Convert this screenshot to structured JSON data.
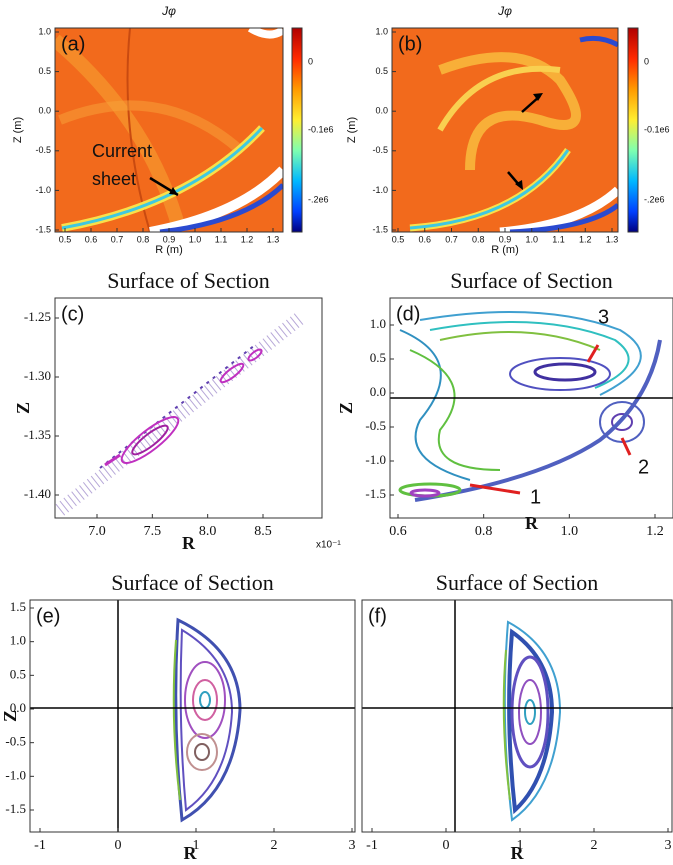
{
  "panels": [
    {
      "label": "(a)",
      "title": "Jφ",
      "x_label": "R (m)",
      "y_label": "Z (m)",
      "x_ticks": [
        "0.5",
        "0.6",
        "0.7",
        "0.8",
        "0.9",
        "1.0",
        "1.1",
        "1.2",
        "1.3"
      ],
      "y_ticks": [
        "1.0",
        "0.5",
        "0.0",
        "-0.5",
        "-1.0",
        "-1.5"
      ],
      "colorbar_ticks": [
        "0",
        "-0.1e6",
        "-.2e6"
      ],
      "annotations": [
        "Current",
        "sheet"
      ]
    },
    {
      "label": "(b)",
      "title": "Jφ",
      "x_label": "R (m)",
      "y_label": "Z (m)",
      "x_ticks": [
        "0.5",
        "0.6",
        "0.7",
        "0.8",
        "0.9",
        "1.0",
        "1.1",
        "1.2",
        "1.3"
      ],
      "y_ticks": [
        "1.0",
        "0.5",
        "0.0",
        "-0.5",
        "-1.0",
        "-1.5"
      ],
      "colorbar_ticks": [
        "0",
        "-0.1e6",
        "-.2e6"
      ]
    },
    {
      "label": "(c)",
      "title": "Surface of Section",
      "x_label": "R",
      "y_label": "Z",
      "x_ticks": [
        "7.0",
        "7.5",
        "8.0",
        "8.5"
      ],
      "y_ticks": [
        "-1.25",
        "-1.30",
        "-1.35",
        "-1.40"
      ],
      "x_multiplier": "x10⁻¹"
    },
    {
      "label": "(d)",
      "title": "Surface of Section",
      "x_label": "R",
      "y_label": "Z",
      "x_ticks": [
        "0.6",
        "0.8",
        "1.0",
        "1.2"
      ],
      "y_ticks": [
        "1.0",
        "0.5",
        "0.0",
        "-0.5",
        "-1.0",
        "-1.5"
      ],
      "annotations": [
        "3",
        "2",
        "1"
      ]
    },
    {
      "label": "(e)",
      "title": "Surface of Section",
      "x_label": "R",
      "y_label": "Z",
      "x_ticks": [
        "-1",
        "0",
        "1",
        "2",
        "3"
      ],
      "y_ticks": [
        "1.5",
        "1.0",
        "0.5",
        "0.0",
        "-0.5",
        "-1.0",
        "-1.5"
      ]
    },
    {
      "label": "(f)",
      "title": "Surface of Section",
      "x_label": "R",
      "x_ticks": [
        "-1",
        "0",
        "1",
        "2",
        "3"
      ]
    }
  ]
}
